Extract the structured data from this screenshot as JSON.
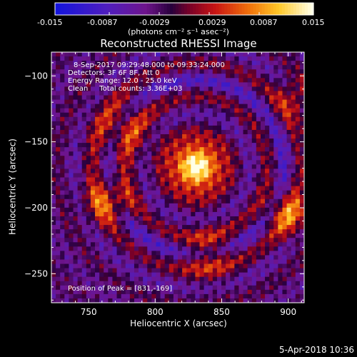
{
  "colors": {
    "background": "#000000",
    "text": "#ffffff"
  },
  "colorbar": {
    "tick_labels": [
      "-0.015",
      "-0.0087",
      "-0.0029",
      "0.0029",
      "0.0087",
      "0.015"
    ],
    "ticks": [
      -0.015,
      -0.0087,
      -0.0029,
      0.0029,
      0.0087,
      0.015
    ],
    "range": [
      -0.015,
      0.015
    ],
    "units_label": "(photons cm⁻² s⁻¹ asec⁻²)",
    "colormap": "blue-purple-red-orange-yellow-white"
  },
  "chart_data": {
    "type": "heatmap",
    "title": "Reconstructed RHESSI Image",
    "xlabel": "Heliocentric X (arcsec)",
    "ylabel": "Heliocentric Y (arcsec)",
    "xlim": [
      722,
      912
    ],
    "ylim": [
      -272,
      -82
    ],
    "x_ticks": [
      750,
      800,
      850,
      900
    ],
    "y_ticks": [
      -100,
      -150,
      -200,
      -250
    ],
    "annotations": [
      "8-Sep-2017 09:29:48.000 to 09:33:24.000",
      "Detectors: 3F 6F 8F, Att 0",
      "Energy Range: 12.0 - 25.0 keV",
      "Clean     Total counts: 3.36E+03"
    ],
    "peak_label": "Position of Peak = [831,-169]",
    "peak": [
      831,
      -169
    ],
    "sources": [
      {
        "x": 831,
        "y": -169,
        "amp": 1.0,
        "sigma": 14
      },
      {
        "x": 765,
        "y": -195,
        "amp": 0.55,
        "sigma": 12
      },
      {
        "x": 775,
        "y": -140,
        "amp": 0.4,
        "sigma": 16
      },
      {
        "x": 900,
        "y": -205,
        "amp": 0.55,
        "sigma": 12
      },
      {
        "x": 905,
        "y": -118,
        "amp": 0.35,
        "sigma": 12
      },
      {
        "x": 840,
        "y": -235,
        "amp": 0.35,
        "sigma": 14
      }
    ]
  },
  "timestamp": "5-Apr-2018 10:36"
}
